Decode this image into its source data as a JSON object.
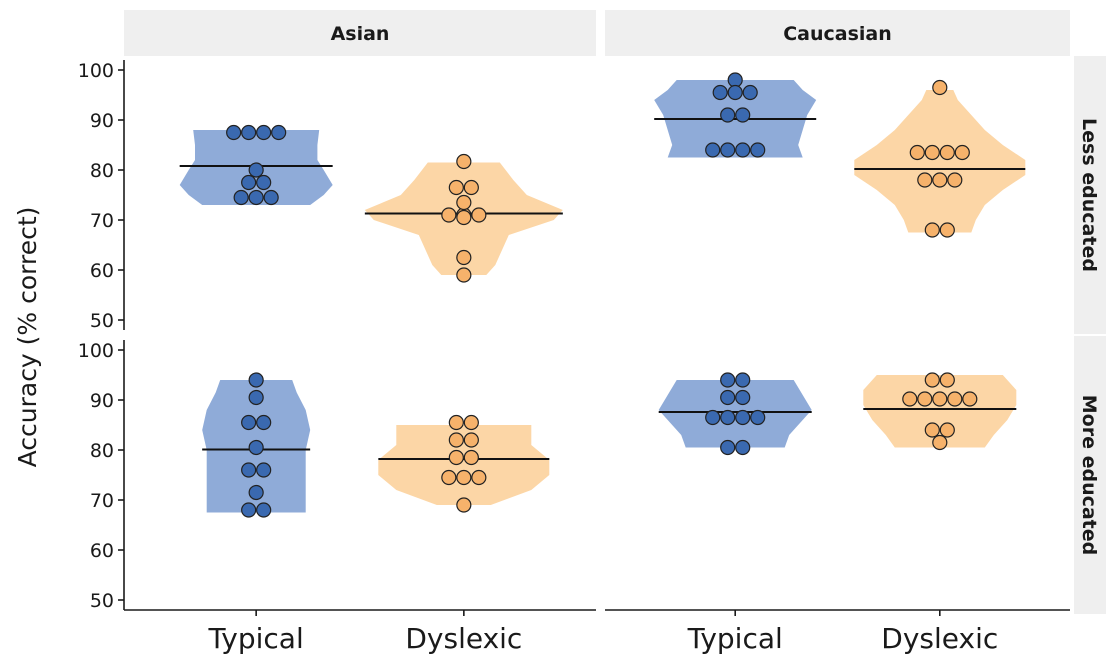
{
  "chart_data": {
    "type": "violin",
    "ylabel": "Accuracy (% correct)",
    "ylim": [
      48,
      102
    ],
    "yticks": [
      50,
      60,
      70,
      80,
      90,
      100
    ],
    "categories": [
      "Typical",
      "Dyslexic"
    ],
    "col_facets": [
      "Asian",
      "Caucasian"
    ],
    "row_facets": [
      "Less educated",
      "More educated"
    ],
    "colors": {
      "Typical": "#8fabd8",
      "Dyslexic": "#fcd6a6",
      "Typical_dot": "#3a69b0",
      "Dyslexic_dot": "#f6b26b"
    },
    "panels": [
      {
        "col": "Asian",
        "row": "Less educated",
        "groups": [
          {
            "category": "Typical",
            "median": 80.8,
            "range": [
              73,
              88
            ],
            "points": [
              87.5,
              87.5,
              87.5,
              87.5,
              80,
              77.5,
              77.5,
              74.5,
              74.5,
              74.5
            ],
            "violin": [
              [
                73,
                6
              ],
              [
                75,
                7.5
              ],
              [
                77,
                8.5
              ],
              [
                80,
                7.5
              ],
              [
                82,
                6.8
              ],
              [
                85,
                6.8
              ],
              [
                88,
                7
              ]
            ]
          },
          {
            "category": "Dyslexic",
            "median": 71.3,
            "range": [
              59,
              81.5
            ],
            "points": [
              81.7,
              76.5,
              76.5,
              73.5,
              71,
              71,
              71,
              70.5,
              62.5,
              59
            ],
            "violin": [
              [
                59,
                2.5
              ],
              [
                61,
                3.5
              ],
              [
                63,
                4
              ],
              [
                67,
                5
              ],
              [
                70,
                10
              ],
              [
                72,
                11
              ],
              [
                75,
                7
              ],
              [
                78,
                5.5
              ],
              [
                81.5,
                4
              ]
            ]
          }
        ]
      },
      {
        "col": "Caucasian",
        "row": "Less educated",
        "groups": [
          {
            "category": "Typical",
            "median": 90.2,
            "range": [
              82.5,
              98
            ],
            "points": [
              98,
              95.5,
              95.5,
              95.5,
              91,
              91,
              84,
              84,
              84,
              84
            ],
            "violin": [
              [
                82.5,
                7.5
              ],
              [
                85,
                7
              ],
              [
                88,
                7.5
              ],
              [
                91,
                8
              ],
              [
                94,
                9
              ],
              [
                96,
                7.5
              ],
              [
                98,
                6.5
              ]
            ]
          },
          {
            "category": "Dyslexic",
            "median": 80.2,
            "range": [
              67.5,
              96
            ],
            "points": [
              96.5,
              83.5,
              83.5,
              83.5,
              83.5,
              78,
              78,
              78,
              68,
              68
            ],
            "violin": [
              [
                67.5,
                3.5
              ],
              [
                70,
                4
              ],
              [
                73,
                5
              ],
              [
                76,
                7
              ],
              [
                79,
                9.5
              ],
              [
                82,
                9.5
              ],
              [
                85,
                7
              ],
              [
                88,
                5
              ],
              [
                91,
                3.5
              ],
              [
                94,
                2
              ],
              [
                96,
                1.5
              ]
            ]
          }
        ]
      },
      {
        "col": "Asian",
        "row": "More educated",
        "groups": [
          {
            "category": "Typical",
            "median": 80.1,
            "range": [
              67.5,
              94
            ],
            "points": [
              94,
              90.5,
              85.5,
              85.5,
              80.5,
              76,
              76,
              71.5,
              68,
              68
            ],
            "violin": [
              [
                67.5,
                5.5
              ],
              [
                71,
                5.5
              ],
              [
                75,
                5.5
              ],
              [
                80,
                5.5
              ],
              [
                84,
                6
              ],
              [
                88,
                5.5
              ],
              [
                91.5,
                4.5
              ],
              [
                94,
                4
              ]
            ]
          },
          {
            "category": "Dyslexic",
            "median": 78.2,
            "range": [
              69,
              85
            ],
            "points": [
              85.5,
              85.5,
              82,
              82,
              78.5,
              78.5,
              74.5,
              74.5,
              74.5,
              69
            ],
            "violin": [
              [
                69,
                3
              ],
              [
                72,
                7.5
              ],
              [
                75,
                9.5
              ],
              [
                78,
                9.5
              ],
              [
                81,
                7.5
              ],
              [
                85,
                7.5
              ]
            ]
          }
        ]
      },
      {
        "col": "Caucasian",
        "row": "More educated",
        "groups": [
          {
            "category": "Typical",
            "median": 87.6,
            "range": [
              80.5,
              94
            ],
            "points": [
              94,
              94,
              90.5,
              90.5,
              86.5,
              86.5,
              86.5,
              86.5,
              80.5,
              80.5
            ],
            "violin": [
              [
                80.5,
                5.5
              ],
              [
                83,
                6
              ],
              [
                86,
                7.5
              ],
              [
                88,
                8.5
              ],
              [
                91,
                7.5
              ],
              [
                94,
                6.5
              ]
            ]
          },
          {
            "category": "Dyslexic",
            "median": 88.2,
            "range": [
              80.5,
              95
            ],
            "points": [
              94,
              94,
              90.2,
              90.2,
              90.2,
              90.2,
              90.2,
              84,
              84,
              81.5
            ],
            "violin": [
              [
                80.5,
                5
              ],
              [
                83,
                6
              ],
              [
                86,
                7.5
              ],
              [
                89,
                8.5
              ],
              [
                92,
                8.5
              ],
              [
                95,
                7
              ]
            ]
          }
        ]
      }
    ]
  }
}
